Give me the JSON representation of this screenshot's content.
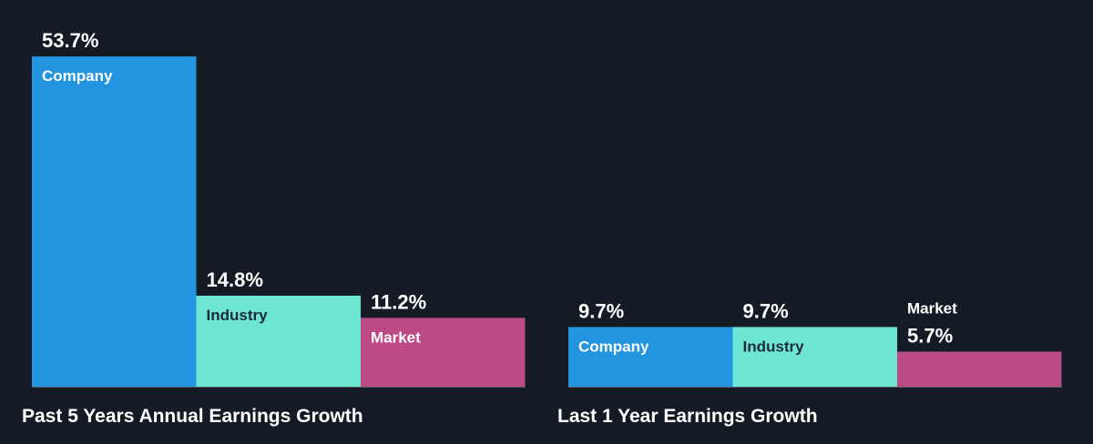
{
  "colors": {
    "background": "#151b24",
    "company": "#2394e0",
    "industry": "#6de6d4",
    "market": "#bc4a87",
    "baseline": "#5a6068",
    "light_text": "#ffffff",
    "dark_text": "#1d2b3c"
  },
  "chart_data": [
    {
      "type": "bar",
      "title": "Past 5 Years Annual Earnings Growth",
      "categories": [
        "Company",
        "Industry",
        "Market"
      ],
      "values": [
        53.7,
        14.8,
        11.2
      ],
      "value_labels": [
        "53.7%",
        "14.8%",
        "11.2%"
      ],
      "unit": "%",
      "ylim": [
        0,
        53.7
      ],
      "grid": false,
      "legend": "none"
    },
    {
      "type": "bar",
      "title": "Last 1 Year Earnings Growth",
      "categories": [
        "Company",
        "Industry",
        "Market"
      ],
      "values": [
        9.7,
        9.7,
        5.7
      ],
      "value_labels": [
        "9.7%",
        "9.7%",
        "5.7%"
      ],
      "unit": "%",
      "ylim": [
        0,
        53.7
      ],
      "grid": false,
      "legend": "none"
    }
  ]
}
